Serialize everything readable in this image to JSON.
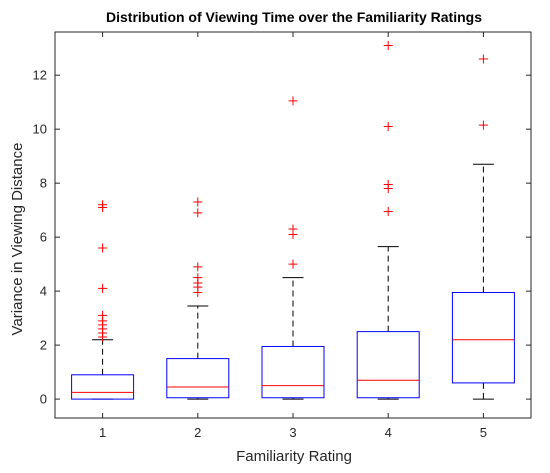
{
  "chart_data": {
    "type": "box",
    "title": "Distribution of Viewing Time over the Familiarity Ratings",
    "xlabel": "Familiarity Rating",
    "ylabel": "Variance in Viewing Distance",
    "categories": [
      "1",
      "2",
      "3",
      "4",
      "5"
    ],
    "ylim": [
      -0.7,
      13.6
    ],
    "yticks": [
      0,
      2,
      4,
      6,
      8,
      10,
      12
    ],
    "grid": false,
    "colors": {
      "box": "#0000ff",
      "median": "#ff0000",
      "whisker": "#000000",
      "outlier": "#ff0000"
    },
    "boxes": [
      {
        "category": "1",
        "q1": 0.0,
        "median": 0.25,
        "q3": 0.9,
        "whisker_low": 0.0,
        "whisker_high": 2.2,
        "outliers": [
          7.2,
          7.1,
          5.6,
          4.1,
          3.1,
          2.9,
          2.75,
          2.6,
          2.45,
          2.3
        ]
      },
      {
        "category": "2",
        "q1": 0.05,
        "median": 0.45,
        "q3": 1.5,
        "whisker_low": 0.0,
        "whisker_high": 3.45,
        "outliers": [
          7.3,
          6.9,
          4.9,
          4.5,
          4.3,
          4.15,
          3.95
        ]
      },
      {
        "category": "3",
        "q1": 0.05,
        "median": 0.5,
        "q3": 1.95,
        "whisker_low": 0.0,
        "whisker_high": 4.5,
        "outliers": [
          11.05,
          6.3,
          6.1,
          5.0
        ]
      },
      {
        "category": "4",
        "q1": 0.05,
        "median": 0.7,
        "q3": 2.5,
        "whisker_low": 0.0,
        "whisker_high": 5.65,
        "outliers": [
          13.1,
          10.1,
          7.95,
          7.8,
          6.95
        ]
      },
      {
        "category": "5",
        "q1": 0.6,
        "median": 2.2,
        "q3": 3.95,
        "whisker_low": 0.0,
        "whisker_high": 8.7,
        "outliers": [
          12.6,
          10.15
        ]
      }
    ]
  }
}
